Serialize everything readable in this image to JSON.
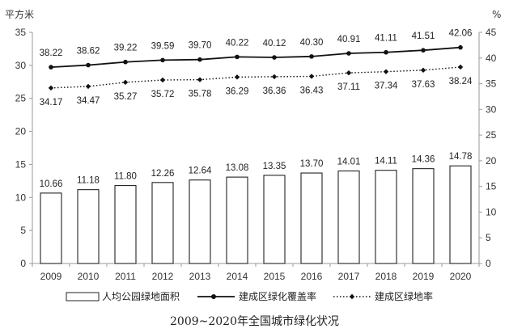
{
  "chart_data": {
    "type": "bar",
    "title": "2009~2020年全国城市绿化状况",
    "categories": [
      "2009",
      "2010",
      "2011",
      "2012",
      "2013",
      "2014",
      "2015",
      "2016",
      "2017",
      "2018",
      "2019",
      "2020"
    ],
    "left_axis": {
      "unit": "平方米",
      "range": [
        0,
        35
      ],
      "ticks": [
        "0",
        "5",
        "10",
        "15",
        "20",
        "25",
        "30",
        "35"
      ]
    },
    "right_axis": {
      "unit": "%",
      "range": [
        0,
        45
      ],
      "ticks": [
        "0",
        "5",
        "10",
        "15",
        "20",
        "25",
        "30",
        "35",
        "40",
        "45"
      ]
    },
    "series": [
      {
        "name": "人均公园绿地面积",
        "type": "bar",
        "axis": "left",
        "values": [
          10.66,
          11.18,
          11.8,
          12.26,
          12.64,
          13.08,
          13.35,
          13.7,
          14.01,
          14.11,
          14.36,
          14.78
        ],
        "labels": [
          "10.66",
          "11.18",
          "11.80",
          "12.26",
          "12.64",
          "13.08",
          "13.35",
          "13.70",
          "14.01",
          "14.11",
          "14.36",
          "14.78"
        ]
      },
      {
        "name": "建成区绿化覆盖率",
        "type": "line",
        "axis": "right",
        "values": [
          38.22,
          38.62,
          39.22,
          39.59,
          39.7,
          40.22,
          40.12,
          40.3,
          40.91,
          41.11,
          41.51,
          42.06
        ],
        "labels": [
          "38.22",
          "38.62",
          "39.22",
          "39.59",
          "39.70",
          "40.22",
          "40.12",
          "40.30",
          "40.91",
          "41.11",
          "41.51",
          "42.06"
        ]
      },
      {
        "name": "建成区绿地率",
        "type": "line-dotted",
        "axis": "right",
        "values": [
          34.17,
          34.47,
          35.27,
          35.72,
          35.78,
          36.29,
          36.36,
          36.43,
          37.11,
          37.34,
          37.63,
          38.24
        ],
        "labels": [
          "34.17",
          "34.47",
          "35.27",
          "35.72",
          "35.78",
          "36.29",
          "36.36",
          "36.43",
          "37.11",
          "37.34",
          "37.63",
          "38.24"
        ]
      }
    ],
    "grid": false,
    "legend": "bottom",
    "colors": {
      "bar_fill": "#ffffff",
      "bar_stroke": "#222222",
      "line": "#111111",
      "axis": "#9a9a9a"
    }
  }
}
